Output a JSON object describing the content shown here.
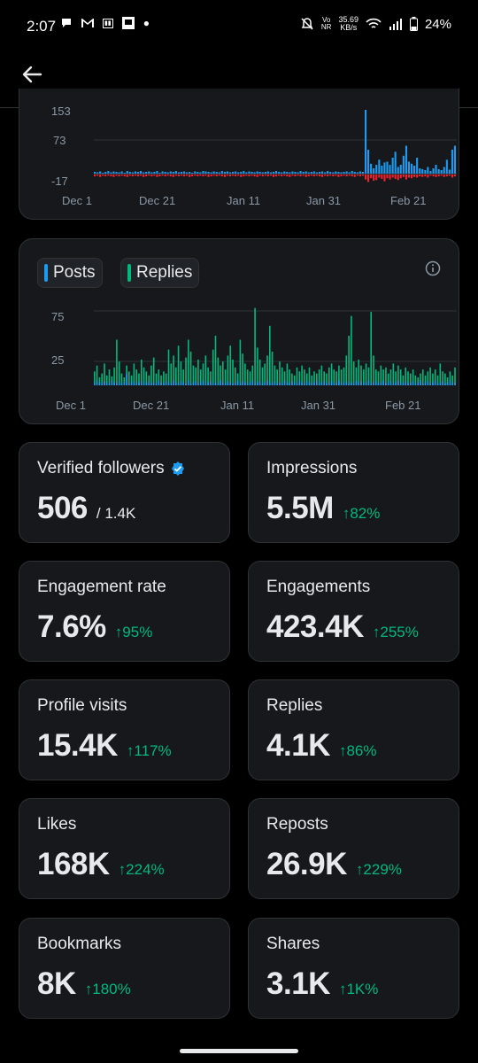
{
  "status_bar": {
    "time": "2:07",
    "speed_value": "35.69",
    "speed_unit": "KB/s",
    "volte": "Vo",
    "volte2": "NR",
    "battery": "24%"
  },
  "chart1": {
    "y_ticks": [
      "153",
      "73",
      "-17"
    ],
    "x_ticks": [
      "Dec 1",
      "Dec 21",
      "Jan 11",
      "Jan 31",
      "Feb 21"
    ],
    "colors": {
      "positive": "#1d9bf0",
      "negative": "#f4212e"
    },
    "positive_values": [
      4,
      3,
      5,
      2,
      4,
      6,
      3,
      5,
      4,
      3,
      5,
      2,
      6,
      4,
      3,
      5,
      4,
      6,
      3,
      4,
      5,
      3,
      4,
      6,
      2,
      5,
      4,
      3,
      5,
      4,
      6,
      3,
      4,
      5,
      3,
      4,
      2,
      5,
      4,
      3,
      6,
      5,
      4,
      3,
      5,
      4,
      3,
      6,
      4,
      5,
      3,
      4,
      5,
      3,
      4,
      6,
      3,
      5,
      4,
      3,
      5,
      4,
      3,
      4,
      5,
      3,
      4,
      6,
      4,
      3,
      5,
      4,
      3,
      5,
      4,
      3,
      6,
      4,
      5,
      3,
      4,
      5,
      3,
      4,
      5,
      3,
      6,
      4,
      3,
      5,
      4,
      3,
      4,
      5,
      3,
      6,
      4,
      3,
      5,
      4,
      160,
      60,
      25,
      12,
      20,
      35,
      18,
      28,
      30,
      22,
      40,
      55,
      15,
      20,
      45,
      70,
      30,
      25,
      18,
      40,
      12,
      10,
      8,
      15,
      6,
      12,
      20,
      10,
      8,
      15,
      35,
      9,
      60,
      70
    ],
    "negative_values": [
      3,
      2,
      4,
      2,
      3,
      2,
      3,
      4,
      2,
      3,
      2,
      3,
      4,
      2,
      3,
      2,
      3,
      2,
      4,
      3,
      2,
      3,
      2,
      4,
      3,
      2,
      3,
      2,
      3,
      4,
      2,
      3,
      2,
      3,
      2,
      4,
      3,
      2,
      3,
      2,
      3,
      2,
      4,
      3,
      2,
      3,
      2,
      3,
      4,
      2,
      3,
      2,
      3,
      2,
      4,
      3,
      2,
      3,
      2,
      3,
      4,
      2,
      3,
      2,
      3,
      2,
      4,
      3,
      2,
      3,
      2,
      3,
      4,
      2,
      3,
      2,
      3,
      2,
      4,
      3,
      2,
      3,
      2,
      3,
      4,
      2,
      3,
      2,
      3,
      2,
      4,
      3,
      2,
      3,
      2,
      3,
      4,
      2,
      3,
      2,
      8,
      12,
      6,
      10,
      9,
      5,
      7,
      11,
      6,
      8,
      5,
      7,
      9,
      6,
      4,
      8,
      5,
      6,
      4,
      5,
      3,
      4,
      3,
      5,
      2,
      3,
      4,
      3,
      2,
      4,
      3,
      2,
      5,
      3
    ]
  },
  "chart2": {
    "legend": [
      {
        "label": "Posts",
        "color": "#1d9bf0"
      },
      {
        "label": "Replies",
        "color": "#00ba7c"
      }
    ],
    "info_icon": "info-icon",
    "y_ticks": [
      "75",
      "25"
    ],
    "x_ticks": [
      "Dec 1",
      "Dec 21",
      "Jan 11",
      "Jan 31",
      "Feb 21"
    ],
    "posts": [
      2,
      5,
      3,
      2,
      4,
      3,
      2,
      5,
      3,
      2,
      4,
      2,
      3,
      12,
      2,
      3,
      4,
      2,
      3,
      5,
      2,
      3,
      4,
      2,
      3,
      2,
      5,
      3,
      2,
      4,
      3,
      2,
      5,
      3,
      2,
      4,
      3,
      2,
      5,
      2,
      3,
      4,
      2,
      3,
      5,
      2,
      3,
      4,
      2,
      3,
      2,
      5,
      3,
      2,
      4,
      3,
      2,
      3,
      5,
      2,
      4,
      3,
      2,
      3,
      5,
      2,
      3,
      4,
      2,
      3,
      5,
      2,
      3,
      4,
      2,
      3,
      2,
      5,
      3,
      2,
      4,
      3,
      2,
      5,
      3,
      2,
      4,
      3,
      2,
      3,
      5,
      2,
      3,
      4,
      2,
      3,
      4,
      2,
      3,
      5,
      2,
      3,
      4,
      2,
      3,
      2,
      5,
      3,
      4,
      2,
      3,
      5,
      2,
      3,
      4,
      2,
      3,
      5,
      2,
      3,
      4,
      2,
      3,
      5,
      2,
      3,
      4,
      2,
      3,
      4,
      2,
      3,
      5,
      2,
      3,
      4,
      2,
      3,
      5,
      2,
      3,
      4,
      2,
      3,
      5,
      2,
      3
    ],
    "replies": [
      14,
      20,
      8,
      12,
      22,
      10,
      16,
      9,
      18,
      46,
      24,
      12,
      8,
      20,
      14,
      10,
      22,
      16,
      12,
      26,
      18,
      14,
      10,
      20,
      28,
      12,
      16,
      10,
      14,
      12,
      36,
      22,
      30,
      18,
      40,
      24,
      16,
      28,
      46,
      34,
      20,
      18,
      26,
      16,
      22,
      30,
      18,
      14,
      36,
      50,
      28,
      20,
      24,
      16,
      30,
      40,
      26,
      18,
      12,
      46,
      32,
      22,
      16,
      14,
      20,
      78,
      38,
      26,
      18,
      22,
      30,
      60,
      34,
      20,
      16,
      24,
      18,
      14,
      22,
      16,
      12,
      10,
      18,
      14,
      20,
      16,
      12,
      18,
      10,
      14,
      12,
      16,
      20,
      14,
      12,
      18,
      22,
      16,
      14,
      20,
      16,
      18,
      30,
      50,
      70,
      24,
      18,
      26,
      20,
      16,
      22,
      18,
      74,
      30,
      16,
      14,
      20,
      16,
      18,
      12,
      16,
      22,
      14,
      20,
      16,
      10,
      18,
      14,
      12,
      16,
      10,
      8,
      12,
      16,
      10,
      14,
      18,
      12,
      16,
      10,
      22,
      14,
      12,
      8,
      14,
      10,
      18
    ]
  },
  "metrics": [
    {
      "label": "Verified followers",
      "value": "506",
      "sub": "/ 1.4K",
      "verified": true
    },
    {
      "label": "Impressions",
      "value": "5.5M",
      "change": "↑82%"
    },
    {
      "label": "Engagement rate",
      "value": "7.6%",
      "change": "↑95%"
    },
    {
      "label": "Engagements",
      "value": "423.4K",
      "change": "↑255%"
    },
    {
      "label": "Profile visits",
      "value": "15.4K",
      "change": "↑117%"
    },
    {
      "label": "Replies",
      "value": "4.1K",
      "change": "↑86%"
    },
    {
      "label": "Likes",
      "value": "168K",
      "change": "↑224%"
    },
    {
      "label": "Reposts",
      "value": "26.9K",
      "change": "↑229%"
    },
    {
      "label": "Bookmarks",
      "value": "8K",
      "change": "↑180%"
    },
    {
      "label": "Shares",
      "value": "3.1K",
      "change": "↑1K%"
    }
  ]
}
